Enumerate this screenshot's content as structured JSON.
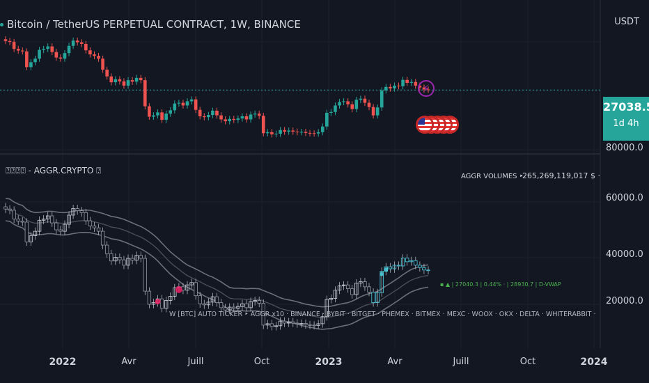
{
  "header": {
    "title": "Bitcoin / TetherUS PERPETUAL CONTRACT, 1W, BINANCE",
    "currency": "USDT"
  },
  "price_tag": {
    "price": "27038.5",
    "timer": "1d 4h"
  },
  "indicator": {
    "title": "⍰⍰⍰⍰ - AGGR.CRYPTO ⍰",
    "aggr_volumes_label": "AGGR VOLUMES ‣",
    "aggr_volumes_value": "265,269,119,017 $ ·",
    "exchanges_line": "W [BTC] AUTO TICKER ‣     AGGR x10 · BINANCE · BYBIT · BITGET · PHEMEX · BITMEX · MEXC · WOOX · OKX · DELTA · WHITERABBIT ·",
    "stats_line": "▪ ▲ | 27040.3 | 0.44% · | 28930.7 | D-VWAP"
  },
  "price_axis": [
    "80000.0",
    "60000.0",
    "40000.0",
    "20000.0"
  ],
  "time_axis": [
    {
      "label": "2022",
      "bold": true
    },
    {
      "label": "Avr",
      "bold": false
    },
    {
      "label": "Juill",
      "bold": false
    },
    {
      "label": "Oct",
      "bold": false
    },
    {
      "label": "2023",
      "bold": true
    },
    {
      "label": "Avr",
      "bold": false
    },
    {
      "label": "Juill",
      "bold": false
    },
    {
      "label": "Oct",
      "bold": false
    },
    {
      "label": "2024",
      "bold": true
    }
  ],
  "colors": {
    "bg": "#131722",
    "up": "#26a69a",
    "down": "#ef5350",
    "accent": "#26a69a"
  },
  "chart_data": {
    "type": "candlestick",
    "interval": "1W",
    "current_price": 27038.5,
    "price_range_lower_pane": [
      15000,
      80000
    ],
    "closes": [
      47000,
      46500,
      43000,
      42200,
      41800,
      35000,
      37000,
      38500,
      42500,
      43000,
      44200,
      41500,
      39000,
      38500,
      41000,
      44500,
      47200,
      46300,
      45500,
      42300,
      40400,
      39700,
      38500,
      34000,
      31500,
      29500,
      30500,
      29800,
      28400,
      30200,
      29700,
      31000,
      30200,
      22500,
      20000,
      20300,
      21000,
      19300,
      20700,
      21500,
      23200,
      23400,
      22700,
      23800,
      24300,
      21600,
      20100,
      19900,
      20400,
      21400,
      20300,
      19400,
      19000,
      19500,
      19300,
      19600,
      20100,
      19400,
      20500,
      20700,
      20200,
      16600,
      16800,
      16400,
      16500,
      17200,
      16900,
      17100,
      16900,
      16800,
      16850,
      16650,
      16600,
      16550,
      16800,
      17900,
      20900,
      21100,
      22700,
      23600,
      23800,
      23000,
      21800,
      24200,
      24500,
      23400,
      22300,
      20300,
      22200,
      26900,
      28000,
      27500,
      28400,
      28200,
      30300,
      29300,
      29600,
      28400,
      27800,
      27200,
      27100
    ]
  }
}
